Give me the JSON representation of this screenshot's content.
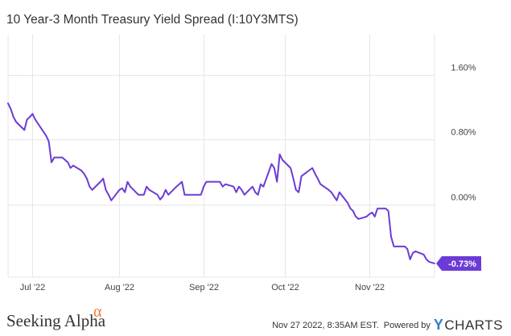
{
  "title": "10 Year-3 Month Treasury Yield Spread (I:10Y3MTS)",
  "footer": {
    "brand": "Seeking Alpha",
    "brand_mark": "α",
    "timestamp": "Nov 27 2022, 8:35AM EST.",
    "powered_by": "Powered by",
    "provider_letter": "Y",
    "provider_rest": "CHARTS"
  },
  "colors": {
    "line": "#6c3bd6",
    "grid": "#e6e6e6",
    "axis_text": "#444444",
    "badge_bg": "#6c3bd6",
    "badge_text": "#ffffff",
    "brand_mark": "#f0782d",
    "provider_y": "#2f7fc4"
  },
  "chart_data": {
    "type": "line",
    "title": "10 Year-3 Month Treasury Yield Spread (I:10Y3MTS)",
    "y_axis": {
      "position": "right",
      "range": [
        -0.9,
        2.1
      ],
      "ticks": [
        0.0,
        0.8,
        1.6
      ],
      "tick_labels": [
        "0.00%",
        "0.80%",
        "1.60%"
      ]
    },
    "x_axis": {
      "range": [
        "2022-06-21",
        "2022-11-25"
      ],
      "ticks": [
        "2022-06-30",
        "2022-08-01",
        "2022-09-01",
        "2022-10-01",
        "2022-11-01"
      ],
      "tick_labels": [
        "Jul '22",
        "Aug '22",
        "Sep '22",
        "Oct '22",
        "Nov '22"
      ]
    },
    "grid": true,
    "last_value_label": "-0.73%",
    "series": [
      {
        "x": [
          "2022-06-21",
          "2022-06-22",
          "2022-06-23",
          "2022-06-24",
          "2022-06-27",
          "2022-06-28",
          "2022-06-29",
          "2022-06-30",
          "2022-07-01",
          "2022-07-05",
          "2022-07-06",
          "2022-07-07",
          "2022-07-08",
          "2022-07-11",
          "2022-07-12",
          "2022-07-13",
          "2022-07-14",
          "2022-07-15",
          "2022-07-18",
          "2022-07-19",
          "2022-07-20",
          "2022-07-21",
          "2022-07-22",
          "2022-07-25",
          "2022-07-26",
          "2022-07-27",
          "2022-07-28",
          "2022-07-29",
          "2022-08-01",
          "2022-08-02",
          "2022-08-03",
          "2022-08-04",
          "2022-08-05",
          "2022-08-08",
          "2022-08-09",
          "2022-08-10",
          "2022-08-11",
          "2022-08-12",
          "2022-08-15",
          "2022-08-16",
          "2022-08-17",
          "2022-08-18",
          "2022-08-19",
          "2022-08-22",
          "2022-08-23",
          "2022-08-24",
          "2022-08-25",
          "2022-08-26",
          "2022-08-29",
          "2022-08-30",
          "2022-08-31",
          "2022-09-01",
          "2022-09-02",
          "2022-09-06",
          "2022-09-07",
          "2022-09-08",
          "2022-09-09",
          "2022-09-12",
          "2022-09-13",
          "2022-09-14",
          "2022-09-15",
          "2022-09-16",
          "2022-09-19",
          "2022-09-20",
          "2022-09-21",
          "2022-09-22",
          "2022-09-23",
          "2022-09-26",
          "2022-09-27",
          "2022-09-28",
          "2022-09-29",
          "2022-09-30",
          "2022-10-03",
          "2022-10-04",
          "2022-10-05",
          "2022-10-06",
          "2022-10-07",
          "2022-10-11",
          "2022-10-12",
          "2022-10-13",
          "2022-10-14",
          "2022-10-17",
          "2022-10-18",
          "2022-10-19",
          "2022-10-20",
          "2022-10-21",
          "2022-10-24",
          "2022-10-25",
          "2022-10-26",
          "2022-10-27",
          "2022-10-28",
          "2022-10-31",
          "2022-11-01",
          "2022-11-02",
          "2022-11-03",
          "2022-11-04",
          "2022-11-07",
          "2022-11-08",
          "2022-11-09",
          "2022-11-10",
          "2022-11-14",
          "2022-11-15",
          "2022-11-16",
          "2022-11-17",
          "2022-11-18",
          "2022-11-21",
          "2022-11-22",
          "2022-11-23",
          "2022-11-25"
        ],
        "y": [
          1.25,
          1.18,
          1.08,
          1.02,
          0.92,
          1.05,
          1.08,
          1.12,
          1.05,
          0.85,
          0.78,
          0.52,
          0.58,
          0.58,
          0.55,
          0.52,
          0.45,
          0.48,
          0.42,
          0.38,
          0.32,
          0.22,
          0.18,
          0.28,
          0.32,
          0.18,
          0.12,
          0.05,
          0.18,
          0.2,
          0.15,
          0.28,
          0.22,
          0.12,
          0.12,
          0.12,
          0.22,
          0.18,
          0.12,
          0.06,
          0.1,
          0.18,
          0.12,
          0.22,
          0.25,
          0.28,
          0.12,
          0.12,
          0.12,
          0.12,
          0.12,
          0.22,
          0.28,
          0.28,
          0.28,
          0.22,
          0.25,
          0.22,
          0.15,
          0.22,
          0.18,
          0.12,
          0.22,
          0.15,
          0.12,
          0.25,
          0.22,
          0.5,
          0.45,
          0.28,
          0.62,
          0.55,
          0.45,
          0.32,
          0.18,
          0.15,
          0.35,
          0.45,
          0.38,
          0.32,
          0.25,
          0.18,
          0.15,
          0.1,
          0.05,
          0.15,
          0.02,
          -0.05,
          -0.08,
          -0.15,
          -0.18,
          -0.15,
          -0.12,
          -0.1,
          -0.15,
          -0.05,
          -0.05,
          -0.08,
          -0.4,
          -0.52,
          -0.52,
          -0.55,
          -0.68,
          -0.6,
          -0.58,
          -0.62,
          -0.68,
          -0.71,
          -0.73
        ]
      }
    ]
  }
}
